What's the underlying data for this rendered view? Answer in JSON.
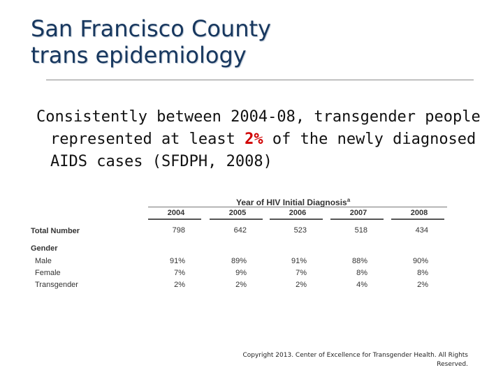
{
  "title_line1": "San Francisco County",
  "title_line2": "trans epidemiology",
  "body": {
    "before": "Consistently between 2004-08, transgender people represented at least ",
    "highlight": "2%",
    "after": " of the newly diagnosed AIDS cases (SFDPH, 2008)"
  },
  "table": {
    "title": "Year of HIV Initial Diagnosis",
    "title_mark": "a",
    "years": [
      "2004",
      "2005",
      "2006",
      "2007",
      "2008"
    ],
    "total_label": "Total Number",
    "totals": [
      "798",
      "642",
      "523",
      "518",
      "434"
    ],
    "gender_label": "Gender",
    "rows": [
      {
        "label": "Male",
        "values": [
          "91%",
          "89%",
          "91%",
          "88%",
          "90%"
        ]
      },
      {
        "label": "Female",
        "values": [
          "7%",
          "9%",
          "7%",
          "8%",
          "8%"
        ]
      },
      {
        "label": "Transgender",
        "values": [
          "2%",
          "2%",
          "2%",
          "4%",
          "2%"
        ]
      }
    ]
  },
  "copyright": "Copyright 2013. Center of Excellence for Transgender Health. All Rights Reserved."
}
